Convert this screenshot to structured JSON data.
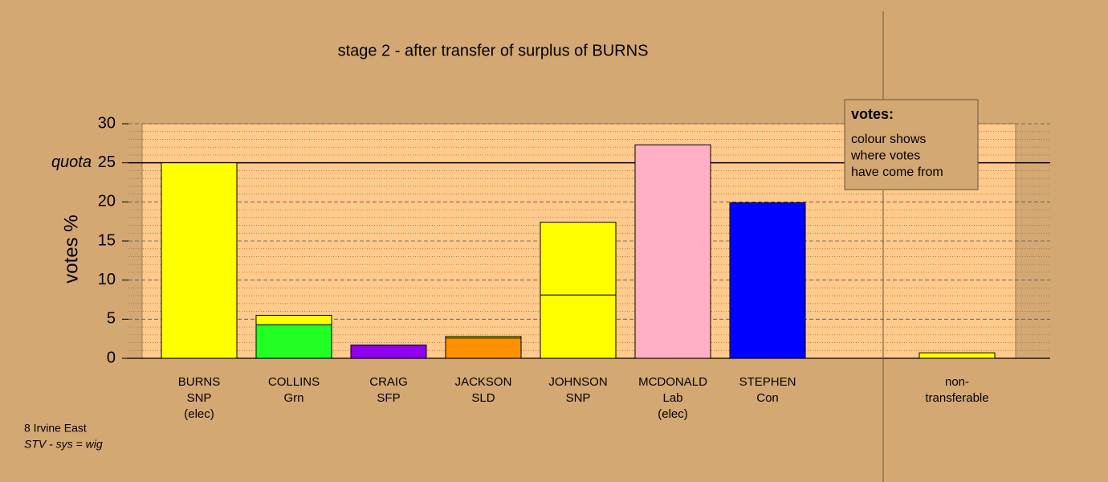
{
  "chart_data": {
    "type": "bar",
    "stacked": true,
    "title": "stage 2 - after transfer of surplus of BURNS",
    "y_label": "votes %",
    "categories": [
      [
        "BURNS",
        "SNP",
        "(elec)"
      ],
      [
        "COLLINS",
        "Grn"
      ],
      [
        "CRAIG",
        "SFP"
      ],
      [
        "JACKSON",
        "SLD"
      ],
      [
        "JOHNSON",
        "SNP"
      ],
      [
        "MCDONALD",
        "Lab",
        "(elec)"
      ],
      [
        "STEPHEN",
        "Con"
      ],
      [
        "non-",
        "transferable"
      ]
    ],
    "series": [
      {
        "colors": [
          "#ffff00",
          "#22ff22",
          "#9000f0",
          "#ff9000",
          "#ffff00",
          "#ffb0c4",
          "#0000ff",
          "#ffff00"
        ],
        "values": [
          25.0,
          4.3,
          1.7,
          2.6,
          8.1,
          27.3,
          19.9,
          0.7
        ]
      },
      {
        "color": "#ffff00",
        "values": [
          null,
          1.2,
          null,
          0.2,
          9.3,
          null,
          null,
          null
        ]
      }
    ],
    "ylim": [
      0,
      30
    ],
    "yticks": [
      0,
      5,
      10,
      15,
      20,
      25,
      30
    ],
    "yminor": [
      1,
      2,
      3,
      4,
      6,
      7,
      8,
      9,
      11,
      12,
      13,
      14,
      16,
      17,
      18,
      19,
      21,
      22,
      23,
      24,
      26,
      27,
      28,
      29
    ],
    "quota": {
      "value": 25,
      "label": "quota"
    },
    "legend": {
      "title": "votes:",
      "lines": [
        "colour shows",
        "where votes",
        "have come from"
      ],
      "position": "upper right"
    },
    "footer": [
      "8 Irvine East",
      "STV - sys = wig"
    ]
  }
}
